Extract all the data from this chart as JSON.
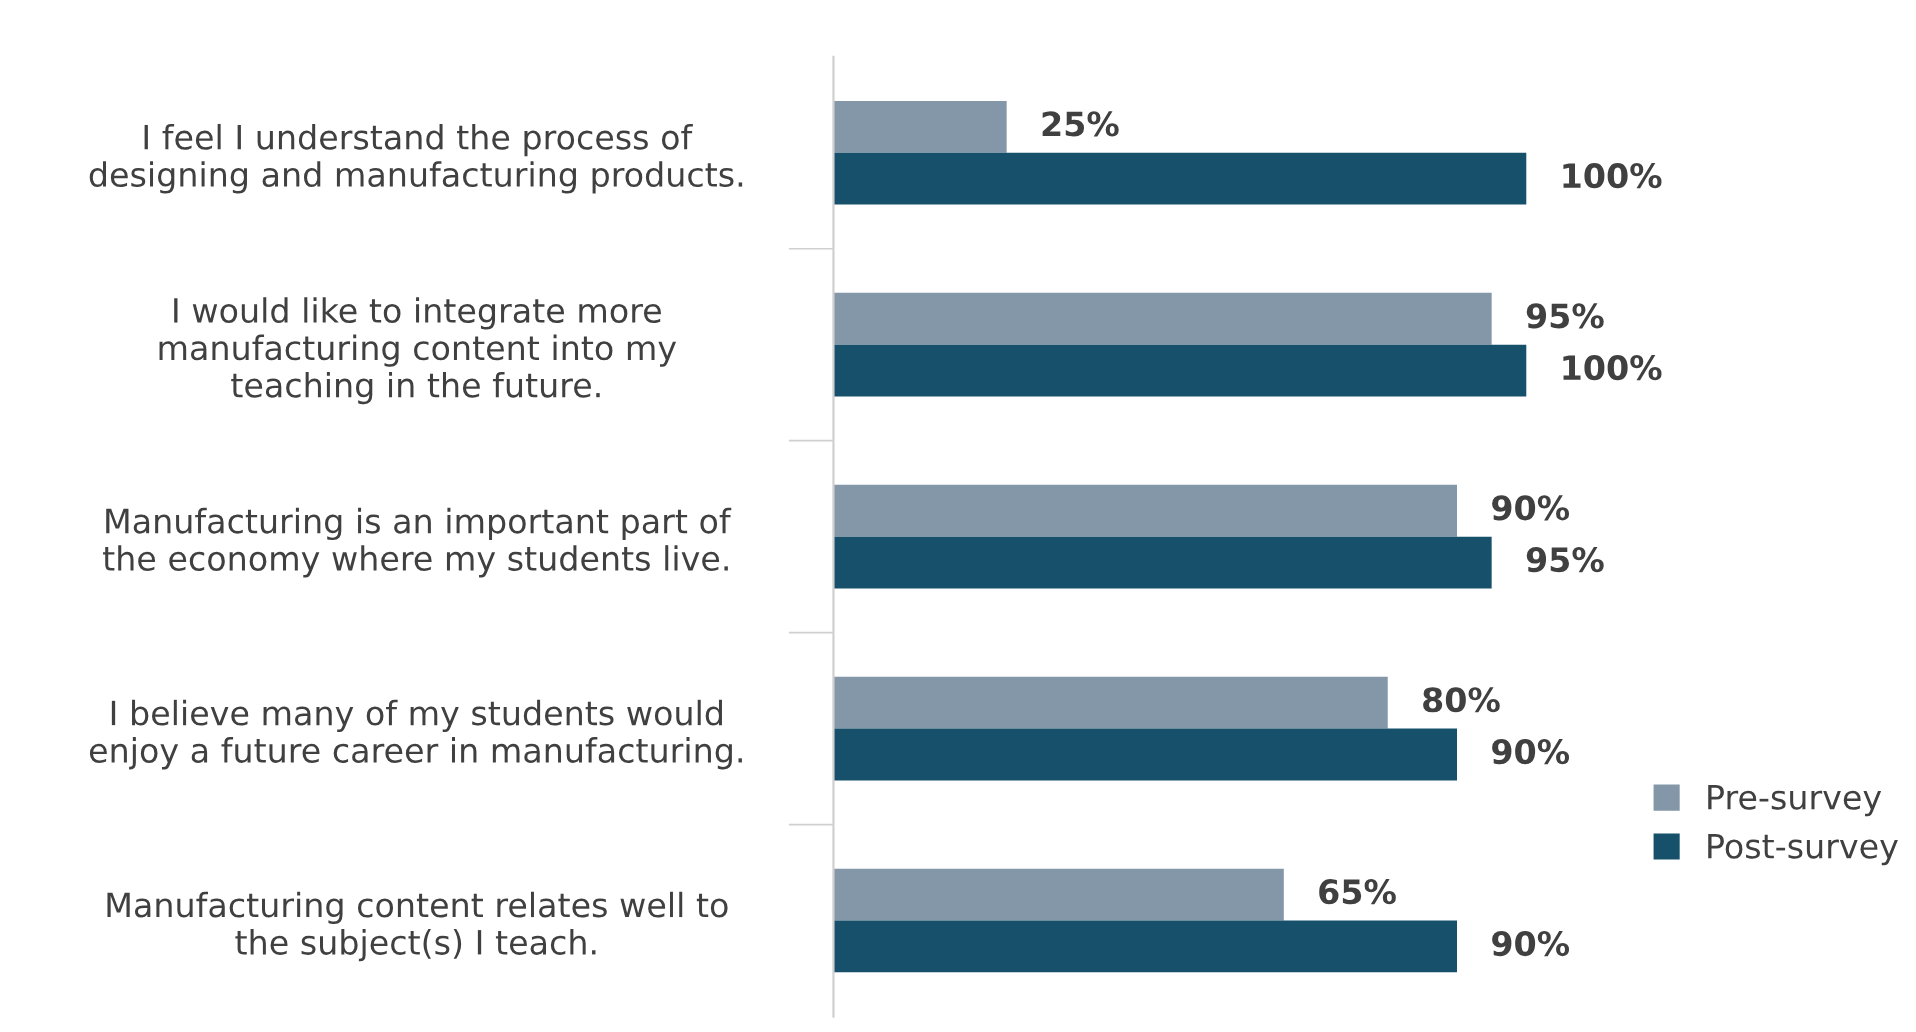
{
  "chart_data": {
    "type": "bar",
    "orientation": "horizontal",
    "categories": [
      "I feel I understand the process of\ndesigning and manufacturing products.",
      "I would like to integrate more\nmanufacturing content into my\nteaching in the future.",
      "Manufacturing is an important part of\nthe economy where my students live.",
      "I believe many of my students would\nenjoy a future career in manufacturing.",
      "Manufacturing content relates well to\nthe subject(s) I teach."
    ],
    "series": [
      {
        "name": "Pre-survey",
        "color": "#8497a8",
        "values": [
          25,
          95,
          90,
          80,
          65
        ],
        "value_labels": [
          "25%",
          "95%",
          "90%",
          "80%",
          "65%"
        ]
      },
      {
        "name": "Post-survey",
        "color": "#17506b",
        "values": [
          100,
          100,
          95,
          90,
          90
        ],
        "value_labels": [
          "100%",
          "100%",
          "95%",
          "90%",
          "90%"
        ]
      }
    ],
    "tick_labels": "y",
    "grid": false,
    "legend": "right"
  }
}
